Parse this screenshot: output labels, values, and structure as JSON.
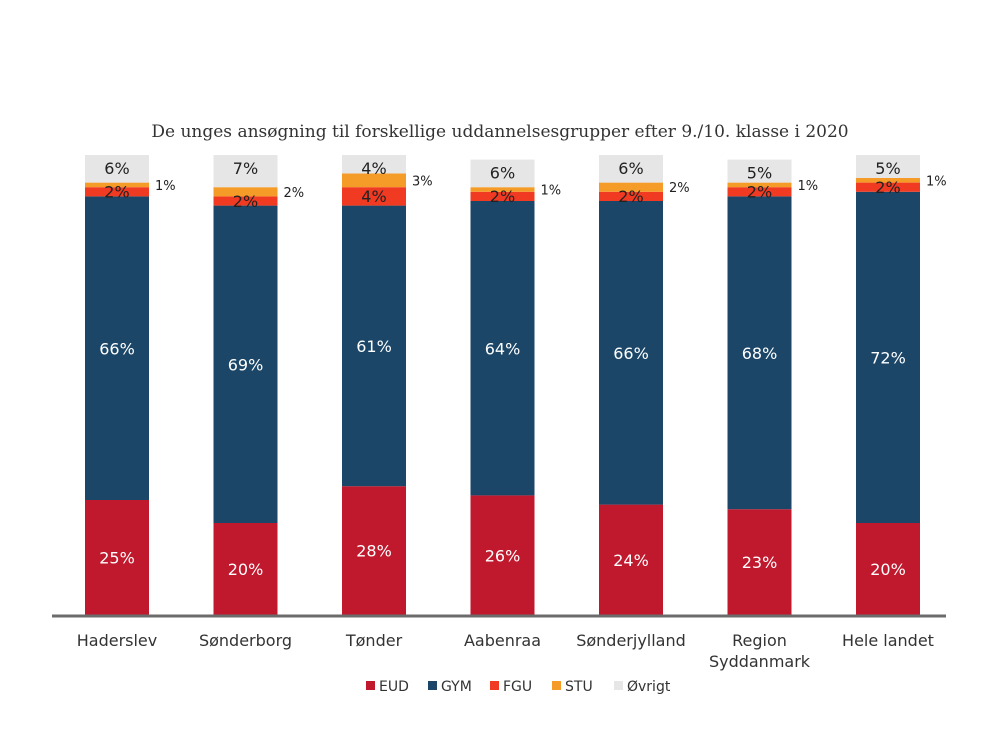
{
  "chart_data": {
    "type": "bar",
    "stacked": true,
    "title": "De unges ansøgning til forskellige uddannelsesgrupper efter 9./10. klasse i 2020",
    "xlabel": "",
    "ylabel": "",
    "ylim": [
      0,
      100
    ],
    "categories": [
      [
        "Haderslev"
      ],
      [
        "Sønderborg"
      ],
      [
        "Tønder"
      ],
      [
        "Aabenraa"
      ],
      [
        "Sønderjylland"
      ],
      [
        "Region",
        "Syddanmark"
      ],
      [
        "Hele landet"
      ]
    ],
    "series": [
      {
        "name": "EUD",
        "color": "#c0182d",
        "label_color": "#ffffff",
        "values": [
          25,
          20,
          28,
          26,
          24,
          23,
          20
        ]
      },
      {
        "name": "GYM",
        "color": "#1b4668",
        "label_color": "#ffffff",
        "values": [
          66,
          69,
          61,
          64,
          66,
          68,
          72
        ]
      },
      {
        "name": "FGU",
        "color": "#f03a22",
        "label_color": "#222222",
        "values": [
          2,
          2,
          4,
          2,
          2,
          2,
          2
        ]
      },
      {
        "name": "STU",
        "color": "#f59b27",
        "label_color": "#222222",
        "values": [
          1,
          2,
          3,
          1,
          2,
          1,
          1
        ]
      },
      {
        "name": "Øvrigt",
        "color": "#e6e6e6",
        "label_color": "#222222",
        "values": [
          6,
          7,
          4,
          6,
          6,
          5,
          5
        ]
      }
    ],
    "value_suffix": "%",
    "legend_position": "bottom",
    "grid": false
  }
}
